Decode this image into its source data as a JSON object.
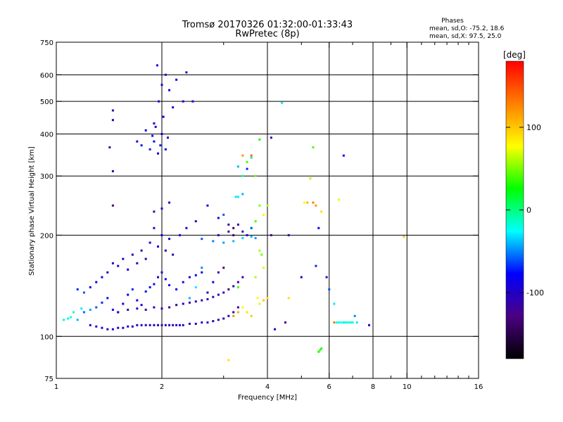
{
  "chart_data": {
    "type": "scatter",
    "title": "Tromsø 20170326 01:32:00-01:33:43",
    "subtitle": "RwPretec (8p)",
    "xlabel": "Frequency [MHz]",
    "ylabel": "Stationary phase Virtual Height [km]",
    "x_scale": "log",
    "y_scale": "log",
    "xlim": [
      1,
      16
    ],
    "ylim": [
      75,
      750
    ],
    "x_ticks": [
      1,
      2,
      4,
      6,
      8,
      10,
      16
    ],
    "x_minor_ticks": [
      3,
      5,
      7,
      9,
      11,
      12,
      13,
      14,
      15
    ],
    "y_ticks": [
      75,
      100,
      200,
      300,
      400,
      500,
      600,
      750
    ],
    "grid": true,
    "stats": {
      "heading": "Phases",
      "line1": "mean, sd,O: -75.2, 18.6",
      "line2": "mean, sd,X:  97.5, 25.0"
    },
    "colorbar": {
      "label": "[deg]",
      "min": -180,
      "max": 180,
      "ticks": [
        100,
        0,
        -100
      ],
      "colors": [
        "#000000",
        "#4b0082",
        "#0000ff",
        "#00ffff",
        "#00ff00",
        "#ffff00",
        "#ff8000",
        "#ff0000"
      ]
    },
    "series": [
      {
        "points": [
          [
            1.05,
            112,
            -15
          ],
          [
            1.08,
            113,
            -20
          ],
          [
            1.1,
            114,
            -25
          ],
          [
            1.12,
            118,
            -10
          ],
          [
            1.15,
            112,
            -40
          ],
          [
            1.18,
            121,
            -30
          ],
          [
            1.2,
            118,
            -55
          ],
          [
            1.25,
            120,
            -45
          ],
          [
            1.3,
            122,
            -60
          ],
          [
            1.35,
            126,
            -70
          ],
          [
            1.4,
            130,
            -75
          ],
          [
            1.45,
            120,
            -80
          ],
          [
            1.5,
            118,
            -65
          ],
          [
            1.55,
            125,
            -85
          ],
          [
            1.6,
            133,
            -80
          ],
          [
            1.65,
            138,
            -70
          ],
          [
            1.7,
            128,
            -90
          ],
          [
            1.75,
            124,
            -95
          ],
          [
            1.8,
            136,
            -75
          ],
          [
            1.85,
            140,
            -85
          ],
          [
            1.9,
            143,
            -90
          ],
          [
            1.95,
            150,
            -100
          ],
          [
            2.0,
            155,
            -95
          ],
          [
            2.05,
            148,
            -90
          ],
          [
            2.1,
            142,
            -85
          ],
          [
            2.2,
            138,
            -80
          ],
          [
            2.3,
            145,
            -95
          ],
          [
            2.4,
            150,
            -90
          ],
          [
            2.5,
            152,
            -85
          ],
          [
            2.6,
            155,
            -100
          ],
          [
            1.3,
            145,
            -80
          ],
          [
            1.4,
            155,
            -90
          ],
          [
            1.5,
            162,
            -95
          ],
          [
            1.6,
            158,
            -85
          ],
          [
            1.7,
            165,
            -100
          ],
          [
            1.8,
            170,
            -110
          ],
          [
            1.25,
            108,
            -90
          ],
          [
            1.3,
            107,
            -95
          ],
          [
            1.35,
            106,
            -100
          ],
          [
            1.4,
            105,
            -105
          ],
          [
            1.45,
            105,
            -95
          ],
          [
            1.5,
            106,
            -100
          ],
          [
            1.55,
            106,
            -110
          ],
          [
            1.6,
            107,
            -105
          ],
          [
            1.65,
            107,
            -100
          ],
          [
            1.7,
            108,
            -110
          ],
          [
            1.75,
            108,
            -105
          ],
          [
            1.8,
            108,
            -100
          ],
          [
            1.85,
            108,
            -110
          ],
          [
            1.9,
            108,
            -105
          ],
          [
            1.95,
            108,
            -100
          ],
          [
            2.0,
            108,
            -110
          ],
          [
            2.05,
            108,
            -105
          ],
          [
            2.1,
            108,
            -100
          ],
          [
            2.15,
            108,
            -110
          ],
          [
            2.2,
            108,
            -105
          ],
          [
            2.25,
            108,
            -100
          ],
          [
            2.3,
            108,
            -110
          ],
          [
            2.4,
            109,
            -105
          ],
          [
            2.5,
            109,
            -100
          ],
          [
            2.6,
            110,
            -110
          ],
          [
            2.7,
            110,
            -105
          ],
          [
            2.8,
            111,
            -100
          ],
          [
            2.9,
            112,
            -110
          ],
          [
            3.0,
            113,
            -105
          ],
          [
            3.1,
            115,
            -100
          ],
          [
            3.2,
            118,
            -110
          ],
          [
            3.3,
            122,
            -105
          ],
          [
            1.5,
            118,
            -110
          ],
          [
            1.6,
            120,
            -110
          ],
          [
            1.7,
            121,
            -105
          ],
          [
            1.8,
            120,
            -115
          ],
          [
            1.9,
            122,
            -110
          ],
          [
            2.0,
            121,
            -115
          ],
          [
            2.1,
            122,
            -110
          ],
          [
            2.2,
            124,
            -115
          ],
          [
            2.3,
            125,
            -110
          ],
          [
            2.4,
            126,
            -115
          ],
          [
            2.5,
            127,
            -110
          ],
          [
            2.6,
            128,
            -115
          ],
          [
            2.7,
            129,
            -110
          ],
          [
            2.8,
            131,
            -115
          ],
          [
            2.9,
            133,
            -110
          ],
          [
            3.0,
            135,
            -115
          ],
          [
            3.1,
            138,
            -110
          ],
          [
            3.2,
            141,
            -115
          ],
          [
            3.3,
            145,
            -110
          ],
          [
            3.4,
            150,
            -115
          ],
          [
            1.9,
            380,
            -80
          ],
          [
            1.95,
            350,
            -90
          ],
          [
            2.0,
            400,
            -85
          ],
          [
            1.92,
            420,
            -95
          ],
          [
            1.98,
            370,
            -70
          ],
          [
            2.05,
            360,
            -80
          ],
          [
            1.88,
            395,
            -75
          ],
          [
            2.02,
            450,
            -85
          ],
          [
            1.96,
            500,
            -90
          ],
          [
            2.0,
            560,
            -95
          ],
          [
            2.05,
            600,
            -100
          ],
          [
            1.94,
            640,
            -90
          ],
          [
            2.1,
            540,
            -85
          ],
          [
            2.15,
            480,
            -80
          ],
          [
            1.85,
            360,
            -70
          ],
          [
            2.08,
            390,
            -95
          ],
          [
            1.9,
            430,
            -100
          ],
          [
            2.2,
            580,
            -90
          ],
          [
            2.3,
            500,
            -85
          ],
          [
            2.35,
            610,
            -95
          ],
          [
            2.45,
            500,
            -80
          ],
          [
            1.75,
            370,
            -75
          ],
          [
            1.8,
            410,
            -85
          ],
          [
            1.7,
            380,
            -90
          ],
          [
            1.45,
            470,
            -110
          ],
          [
            1.45,
            440,
            -100
          ],
          [
            1.42,
            365,
            -120
          ],
          [
            1.45,
            310,
            -110
          ],
          [
            1.45,
            245,
            -130
          ],
          [
            1.9,
            235,
            -120
          ],
          [
            2.0,
            240,
            -110
          ],
          [
            2.1,
            250,
            -100
          ],
          [
            1.9,
            210,
            -95
          ],
          [
            2.0,
            200,
            -85
          ],
          [
            2.1,
            195,
            -90
          ],
          [
            2.05,
            180,
            -100
          ],
          [
            1.95,
            185,
            -95
          ],
          [
            2.15,
            175,
            -110
          ],
          [
            2.6,
            195,
            -60
          ],
          [
            2.8,
            192,
            -50
          ],
          [
            3.0,
            190,
            -45
          ],
          [
            3.2,
            192,
            -40
          ],
          [
            3.4,
            196,
            -35
          ],
          [
            3.6,
            198,
            -40
          ],
          [
            3.7,
            196,
            -45
          ],
          [
            2.9,
            200,
            -100
          ],
          [
            3.1,
            205,
            -130
          ],
          [
            3.2,
            210,
            -140
          ],
          [
            3.3,
            215,
            -120
          ],
          [
            3.4,
            205,
            -110
          ],
          [
            3.5,
            200,
            -100
          ],
          [
            3.6,
            210,
            30
          ],
          [
            3.7,
            220,
            40
          ],
          [
            3.8,
            245,
            50
          ],
          [
            3.9,
            230,
            80
          ],
          [
            4.0,
            245,
            60
          ],
          [
            3.8,
            180,
            60
          ],
          [
            3.85,
            175,
            50
          ],
          [
            3.9,
            160,
            70
          ],
          [
            3.7,
            150,
            60
          ],
          [
            3.75,
            130,
            80
          ],
          [
            3.8,
            125,
            70
          ],
          [
            3.5,
            118,
            90
          ],
          [
            3.6,
            115,
            100
          ],
          [
            3.3,
            118,
            110
          ],
          [
            3.2,
            115,
            120
          ],
          [
            3.4,
            122,
            80
          ],
          [
            3.9,
            128,
            100
          ],
          [
            4.0,
            130,
            90
          ],
          [
            3.3,
            140,
            40
          ],
          [
            3.4,
            300,
            -10
          ],
          [
            3.5,
            315,
            -70
          ],
          [
            3.5,
            330,
            40
          ],
          [
            3.6,
            340,
            -10
          ],
          [
            3.7,
            300,
            50
          ],
          [
            3.8,
            385,
            30
          ],
          [
            3.3,
            260,
            -30
          ],
          [
            3.4,
            265,
            -40
          ],
          [
            4.4,
            495,
            -30
          ],
          [
            4.1,
            390,
            -100
          ],
          [
            4.6,
            200,
            -110
          ],
          [
            4.1,
            200,
            -120
          ],
          [
            4.2,
            105,
            -100
          ],
          [
            4.5,
            110,
            -130
          ],
          [
            4.6,
            130,
            90
          ],
          [
            5.0,
            150,
            -100
          ],
          [
            5.4,
            365,
            40
          ],
          [
            5.3,
            295,
            60
          ],
          [
            5.1,
            250,
            80
          ],
          [
            5.2,
            250,
            110
          ],
          [
            5.4,
            250,
            130
          ],
          [
            5.5,
            245,
            120
          ],
          [
            5.6,
            210,
            -80
          ],
          [
            5.7,
            235,
            90
          ],
          [
            5.5,
            162,
            -70
          ],
          [
            5.9,
            150,
            -100
          ],
          [
            5.6,
            90,
            30
          ],
          [
            5.65,
            91,
            40
          ],
          [
            5.7,
            92,
            20
          ],
          [
            6.0,
            138,
            -60
          ],
          [
            6.2,
            125,
            -30
          ],
          [
            6.3,
            110,
            -20
          ],
          [
            6.4,
            110,
            -15
          ],
          [
            6.5,
            110,
            -25
          ],
          [
            6.6,
            110,
            -30
          ],
          [
            6.7,
            110,
            -10
          ],
          [
            6.8,
            110,
            -20
          ],
          [
            6.9,
            110,
            -15
          ],
          [
            7.0,
            110,
            -20
          ],
          [
            7.2,
            110,
            -30
          ],
          [
            6.6,
            345,
            -80
          ],
          [
            6.4,
            255,
            70
          ],
          [
            6.2,
            110,
            130
          ],
          [
            7.1,
            115,
            -50
          ],
          [
            7.8,
            108,
            -100
          ],
          [
            9.8,
            198,
            100
          ],
          [
            3.3,
            320,
            -40
          ],
          [
            3.6,
            210,
            -60
          ],
          [
            3.4,
            345,
            120
          ],
          [
            3.6,
            345,
            140
          ],
          [
            3.1,
            85,
            90
          ],
          [
            2.4,
            130,
            -40
          ],
          [
            2.5,
            140,
            -30
          ],
          [
            2.6,
            160,
            -50
          ],
          [
            2.7,
            135,
            -100
          ],
          [
            2.8,
            145,
            -90
          ],
          [
            2.9,
            155,
            -120
          ],
          [
            3.0,
            160,
            -130
          ],
          [
            1.2,
            135,
            -60
          ],
          [
            1.15,
            138,
            -70
          ],
          [
            1.25,
            140,
            -80
          ],
          [
            1.35,
            150,
            -90
          ],
          [
            1.45,
            165,
            -95
          ],
          [
            1.55,
            170,
            -100
          ],
          [
            1.65,
            175,
            -105
          ],
          [
            1.75,
            180,
            -110
          ],
          [
            1.85,
            190,
            -100
          ],
          [
            2.25,
            200,
            -90
          ],
          [
            2.35,
            210,
            -95
          ],
          [
            2.5,
            220,
            -100
          ],
          [
            2.7,
            245,
            -90
          ],
          [
            2.9,
            225,
            -100
          ],
          [
            3.1,
            215,
            -120
          ],
          [
            3.2,
            200,
            -140
          ],
          [
            3.0,
            230,
            -60
          ],
          [
            3.25,
            260,
            -30
          ]
        ]
      }
    ]
  }
}
